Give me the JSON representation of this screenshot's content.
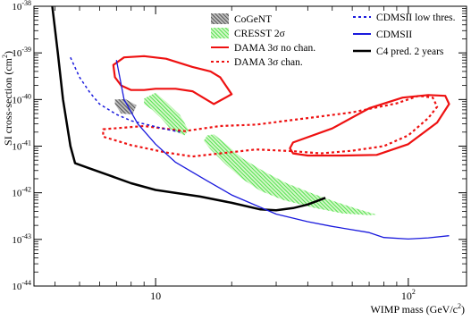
{
  "chart_data": {
    "type": "line",
    "xlabel": "WIMP mass (GeV/c",
    "xlabel_sup": "2",
    "xlabel_close": ")",
    "ylabel": "SI cross-section (cm",
    "ylabel_sup": "2",
    "ylabel_close": ")",
    "x_scale": "log",
    "y_scale": "log",
    "xlim": [
      3.3,
      170
    ],
    "ylim": [
      1e-44,
      1e-38
    ],
    "x_ticks": [
      {
        "value": 10,
        "base": "10",
        "exp": ""
      },
      {
        "value": 100,
        "base": "10",
        "exp": "2"
      }
    ],
    "y_ticks": [
      {
        "value": 1e-38,
        "base": "10",
        "exp": "-38"
      },
      {
        "value": 1e-39,
        "base": "10",
        "exp": "-39"
      },
      {
        "value": 1e-40,
        "base": "10",
        "exp": "-40"
      },
      {
        "value": 1e-41,
        "base": "10",
        "exp": "-41"
      },
      {
        "value": 1e-42,
        "base": "10",
        "exp": "-42"
      },
      {
        "value": 1e-43,
        "base": "10",
        "exp": "-43"
      },
      {
        "value": 1e-44,
        "base": "10",
        "exp": "-44"
      }
    ],
    "grid": false,
    "legend": [
      {
        "id": "cogent",
        "label": "CoGeNT",
        "color": "#555555",
        "style": "hatch-dark"
      },
      {
        "id": "cresst",
        "label": "CRESST 2σ",
        "color": "#33dd33",
        "style": "hatch-green"
      },
      {
        "id": "dama_no",
        "label": "DAMA 3σ no chan.",
        "color": "#ee1111",
        "style": "solid"
      },
      {
        "id": "dama_chan",
        "label": "DAMA 3σ chan.",
        "color": "#ee1111",
        "style": "dotted"
      },
      {
        "id": "cdms_low",
        "label": "CDMSII low thres.",
        "color": "#1a1add",
        "style": "dotted"
      },
      {
        "id": "cdms",
        "label": "CDMSII",
        "color": "#1a1add",
        "style": "solid"
      },
      {
        "id": "c4",
        "label": "C4 pred. 2 years",
        "color": "#000000",
        "style": "solid"
      }
    ],
    "series": [
      {
        "id": "c4",
        "kind": "line",
        "color": "#000000",
        "style": "solid",
        "width": 2.5,
        "points": [
          [
            3.9,
            1e-38
          ],
          [
            4.1,
            1e-39
          ],
          [
            4.3,
            1e-40
          ],
          [
            4.6,
            1e-41
          ],
          [
            4.8,
            4.3e-42
          ],
          [
            5.5,
            3.3e-42
          ],
          [
            6.5,
            2.4e-42
          ],
          [
            8,
            1.6e-42
          ],
          [
            10,
            1.15e-42
          ],
          [
            15,
            8.3e-43
          ],
          [
            20,
            6.1e-43
          ],
          [
            26,
            4.4e-43
          ],
          [
            30,
            4.2e-43
          ],
          [
            35,
            4.7e-43
          ],
          [
            40,
            5.6e-43
          ],
          [
            47,
            7.8e-43
          ]
        ]
      },
      {
        "id": "cdms",
        "kind": "line",
        "color": "#1a1add",
        "style": "solid",
        "width": 1.3,
        "points": [
          [
            7,
            7e-40
          ],
          [
            7.5,
            1e-40
          ],
          [
            8.5,
            3e-41
          ],
          [
            10,
            1.1e-41
          ],
          [
            12,
            4.5e-42
          ],
          [
            16,
            1.8e-42
          ],
          [
            20,
            9e-43
          ],
          [
            30,
            3.5e-43
          ],
          [
            40,
            2.4e-43
          ],
          [
            50,
            1.9e-43
          ],
          [
            70,
            1.4e-43
          ],
          [
            80,
            1.1e-43
          ],
          [
            100,
            1.02e-43
          ],
          [
            120,
            1.08e-43
          ],
          [
            145,
            1.2e-43
          ]
        ]
      },
      {
        "id": "cdms_low",
        "kind": "line",
        "color": "#1a1add",
        "style": "dotted",
        "width": 1.5,
        "points": [
          [
            4.6,
            8e-40
          ],
          [
            5,
            3e-40
          ],
          [
            5.5,
            1.4e-40
          ],
          [
            6,
            8e-41
          ],
          [
            7,
            4.8e-41
          ],
          [
            8,
            3.5e-41
          ],
          [
            9.5,
            2.8e-41
          ],
          [
            11,
            2.3e-41
          ],
          [
            12.5,
            2e-41
          ]
        ]
      },
      {
        "id": "dama_no",
        "kind": "closed",
        "color": "#ee1111",
        "style": "solid",
        "width": 2.2,
        "points": [
          [
            6.8,
            5.5e-40
          ],
          [
            7.5,
            8e-40
          ],
          [
            9,
            8.5e-40
          ],
          [
            11,
            7.5e-40
          ],
          [
            14,
            5e-40
          ],
          [
            16.5,
            4e-40
          ],
          [
            18,
            3e-40
          ],
          [
            20,
            1.3e-40
          ],
          [
            17,
            8e-41
          ],
          [
            14,
            1.5e-40
          ],
          [
            12,
            1.7e-40
          ],
          [
            10,
            1.7e-40
          ],
          [
            9,
            1.6e-40
          ],
          [
            8,
            1.6e-40
          ],
          [
            7.3,
            2e-40
          ],
          [
            6.9,
            3e-40
          ],
          [
            6.8,
            5.5e-40
          ]
        ]
      },
      {
        "id": "dama_no_2",
        "kind": "closed",
        "color": "#ee1111",
        "style": "solid",
        "width": 2.2,
        "points": [
          [
            35,
            1.2e-41
          ],
          [
            50,
            2.4e-41
          ],
          [
            70,
            6.5e-41
          ],
          [
            95,
            1.1e-40
          ],
          [
            120,
            1.25e-40
          ],
          [
            140,
            1.2e-40
          ],
          [
            145,
            8e-41
          ],
          [
            130,
            3.2e-41
          ],
          [
            100,
            1.1e-41
          ],
          [
            75,
            6.5e-42
          ],
          [
            55,
            6.3e-42
          ],
          [
            40,
            6.3e-42
          ],
          [
            35,
            7e-42
          ],
          [
            34,
            9e-42
          ],
          [
            35,
            1.2e-41
          ]
        ]
      },
      {
        "id": "dama_chan",
        "kind": "closed",
        "color": "#ee1111",
        "style": "dotted",
        "width": 2.2,
        "points": [
          [
            6.2,
            2.3e-41
          ],
          [
            9,
            2.7e-41
          ],
          [
            13,
            2.1e-41
          ],
          [
            18,
            2.7e-41
          ],
          [
            25,
            2.9e-41
          ],
          [
            40,
            4e-41
          ],
          [
            60,
            5.3e-41
          ],
          [
            90,
            8.3e-41
          ],
          [
            110,
            1.2e-40
          ],
          [
            125,
            1.1e-40
          ],
          [
            130,
            7e-41
          ],
          [
            120,
            4e-41
          ],
          [
            100,
            1.7e-41
          ],
          [
            80,
            1e-41
          ],
          [
            60,
            8e-42
          ],
          [
            45,
            7e-42
          ],
          [
            35,
            7.8e-42
          ],
          [
            25,
            8.5e-42
          ],
          [
            18,
            7e-42
          ],
          [
            14,
            6e-42
          ],
          [
            11,
            7.3e-42
          ],
          [
            8,
            1.05e-41
          ],
          [
            6.2,
            1.6e-41
          ],
          [
            6.2,
            2.3e-41
          ]
        ]
      },
      {
        "id": "cogent",
        "kind": "region",
        "color": "#555555",
        "style": "hatch-dark",
        "points": [
          [
            6.9,
            1e-40
          ],
          [
            7.6,
            1.02e-40
          ],
          [
            8.4,
            7.5e-41
          ],
          [
            8.1,
            4.8e-41
          ],
          [
            7.3,
            5e-41
          ],
          [
            6.9,
            8e-41
          ]
        ]
      },
      {
        "id": "cresst",
        "kind": "region",
        "color": "#33dd33",
        "style": "hatch-green",
        "points": [
          [
            9,
            1.05e-40
          ],
          [
            10,
            1.4e-40
          ],
          [
            11,
            9e-41
          ],
          [
            12.5,
            4.6e-41
          ],
          [
            13.5,
            2.2e-41
          ],
          [
            13,
            1.7e-41
          ],
          [
            11.5,
            2.3e-41
          ],
          [
            10.5,
            4e-41
          ],
          [
            9.7,
            6e-41
          ],
          [
            9,
            8e-41
          ]
        ]
      },
      {
        "id": "cresst_2",
        "kind": "region",
        "color": "#33dd33",
        "style": "hatch-green",
        "points": [
          [
            16,
            1.7e-41
          ],
          [
            17,
            1.8e-41
          ],
          [
            19,
            1.1e-41
          ],
          [
            22,
            5.5e-42
          ],
          [
            27,
            2.8e-42
          ],
          [
            33,
            1.6e-42
          ],
          [
            42,
            9.5e-43
          ],
          [
            52,
            6.3e-43
          ],
          [
            62,
            4.6e-43
          ],
          [
            75,
            3.4e-43
          ],
          [
            70,
            3.3e-43
          ],
          [
            55,
            3.6e-43
          ],
          [
            42,
            4.8e-43
          ],
          [
            32,
            7e-43
          ],
          [
            26,
            1.1e-42
          ],
          [
            22,
            2e-42
          ],
          [
            19,
            4e-42
          ],
          [
            16.5,
            8.5e-42
          ],
          [
            15.5,
            1.3e-41
          ]
        ]
      }
    ]
  }
}
